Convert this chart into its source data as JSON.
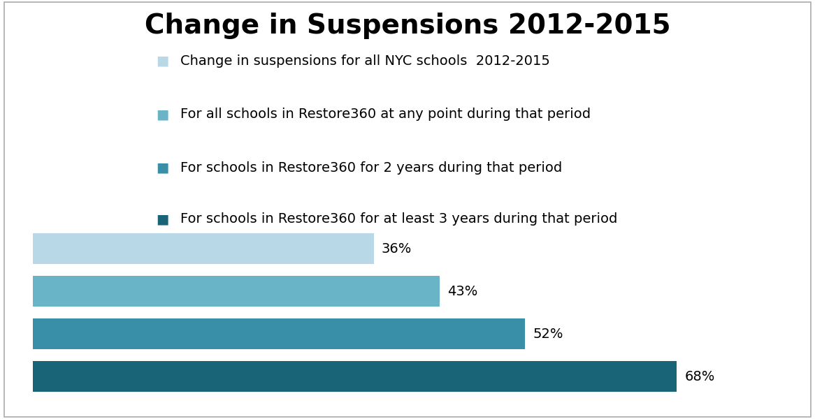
{
  "title": "Change in Suspensions 2012-2015",
  "title_fontsize": 28,
  "title_fontweight": "bold",
  "categories": [
    "Change in suspensions for all NYC schools  2012-2015",
    "For all schools in Restore360 at any point during that period",
    "For schools in Restore360 for 2 years during that period",
    "For schools in Restore360 for at least 3 years during that period"
  ],
  "values": [
    36,
    43,
    52,
    68
  ],
  "bar_colors": [
    "#b8d8e8",
    "#6ab4c8",
    "#3a8fa8",
    "#1a6478"
  ],
  "bar_labels": [
    "36%",
    "43%",
    "52%",
    "68%"
  ],
  "label_fontsize": 14,
  "legend_fontsize": 14,
  "xlim": [
    0,
    80
  ],
  "bar_height": 0.72,
  "background_color": "#ffffff",
  "border_color": "#aaaaaa"
}
